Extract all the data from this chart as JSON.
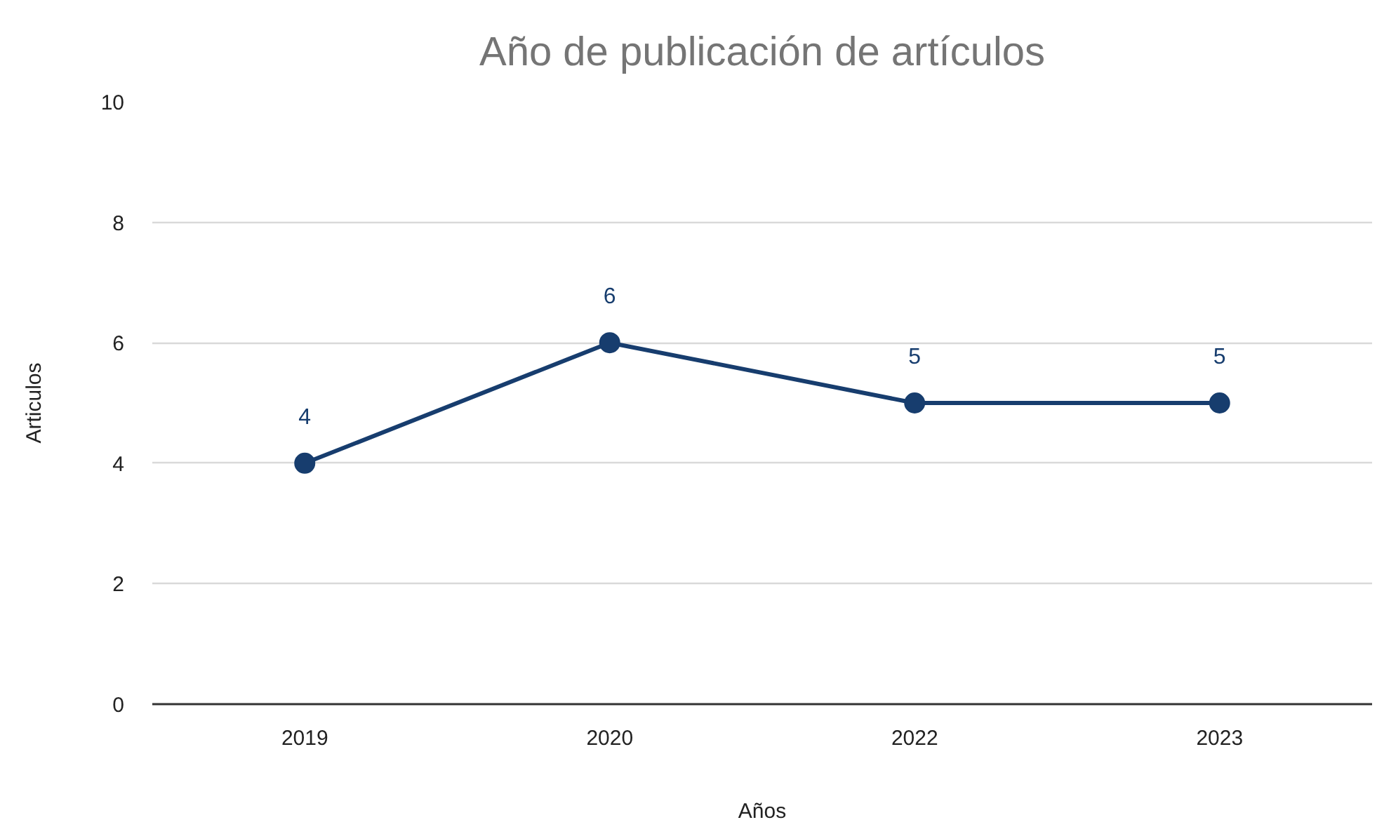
{
  "chart_data": {
    "type": "line",
    "title": "Año de publicación de artículos",
    "xlabel": "Años",
    "ylabel": "Articulos",
    "categories": [
      "2019",
      "2020",
      "2022",
      "2023"
    ],
    "series": [
      {
        "color": "#173d6e",
        "values": [
          4,
          6,
          5,
          5
        ]
      }
    ],
    "ylim": [
      0,
      10
    ],
    "yticks": [
      0,
      2,
      4,
      6,
      8,
      10
    ],
    "grid": "y",
    "marker": "circle",
    "line_style": "solid",
    "data_labels": true
  }
}
